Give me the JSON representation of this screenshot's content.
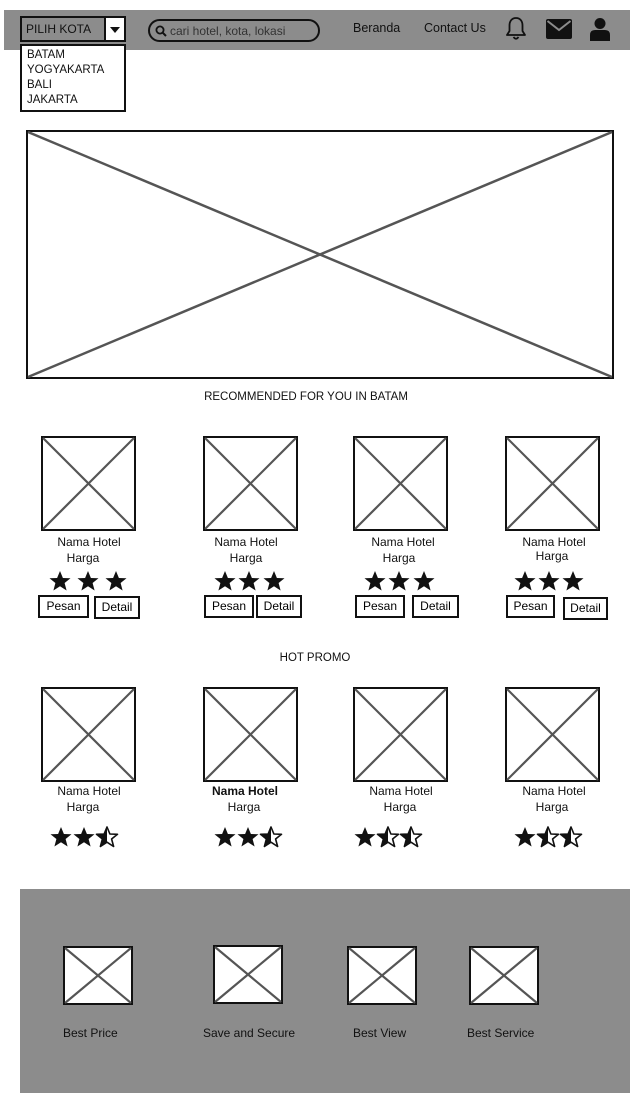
{
  "header": {
    "city_select_label": "PILIH KOTA",
    "city_options": [
      "BATAM",
      "YOGYAKARTA",
      "BALI",
      "JAKARTA"
    ],
    "search_placeholder": "cari hotel, kota, lokasi",
    "nav_home": "Beranda",
    "nav_contact": "Contact Us",
    "icons": [
      "bell-icon",
      "envelope-icon",
      "user-icon"
    ]
  },
  "recommended": {
    "title": "RECOMMENDED FOR YOU IN BATAM",
    "cards": [
      {
        "name": "Nama Hotel",
        "price": "Harga",
        "rating": 3,
        "book": "Pesan",
        "detail": "Detail"
      },
      {
        "name": "Nama Hotel",
        "price": "Harga",
        "rating": 3,
        "book": "Pesan",
        "detail": "Detail"
      },
      {
        "name": "Nama Hotel",
        "price": "Harga",
        "rating": 3,
        "book": "Pesan",
        "detail": "Detail"
      },
      {
        "name": "Nama Hotel",
        "price": "Harga",
        "rating": 3,
        "book": "Pesan",
        "detail": "Detail"
      }
    ]
  },
  "promo": {
    "title": "HOT PROMO",
    "cards": [
      {
        "name": "Nama Hotel",
        "price": "Harga",
        "rating": 2.5
      },
      {
        "name": "Nama Hotel",
        "price": "Harga",
        "rating": 2.5
      },
      {
        "name": "Nama Hotel",
        "price": "Harga",
        "rating": 1.5
      },
      {
        "name": "Nama Hotel",
        "price": "Harga",
        "rating": 1.5
      }
    ]
  },
  "features": [
    "Best Price",
    "Save and Secure",
    "Best View",
    "Best Service"
  ],
  "colors": {
    "bar": "#8c8c8c",
    "footer": "#8c8c8c",
    "placeholder_stroke": "#555555"
  }
}
